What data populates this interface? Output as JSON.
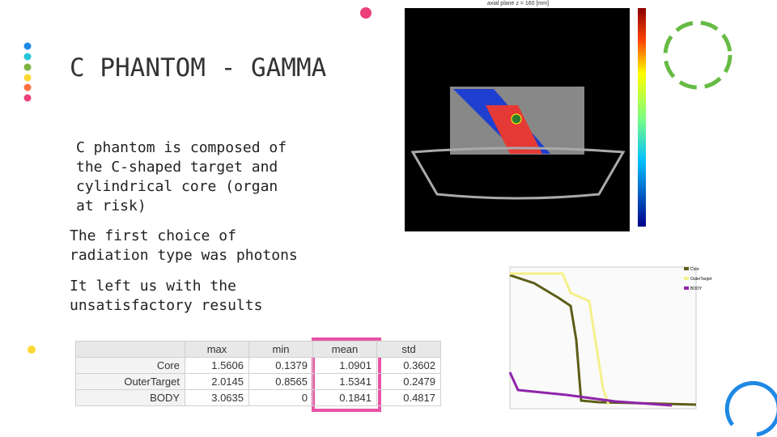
{
  "title": "C PHANTOM - GAMMA",
  "bullets": [
    "C phantom is composed of the C-shaped target and cylindrical core (organ at risk)",
    "The first choice of radiation type was photons",
    "It left us with the unsatisfactory results"
  ],
  "figure": {
    "title": "axial plane z = 160 [mm]"
  },
  "dvh_legend": [
    "Core",
    "OuterTarget",
    "BODY"
  ],
  "table": {
    "columns": [
      "max",
      "min",
      "mean",
      "std"
    ],
    "rows": [
      [
        "Core",
        "1.5606",
        "0.1379",
        "1.0901",
        "0.3602"
      ],
      [
        "OuterTarget",
        "2.0145",
        "0.8565",
        "1.5341",
        "0.2479"
      ],
      [
        "BODY",
        "3.0635",
        "0",
        "0.1841",
        "0.4817"
      ]
    ]
  }
}
